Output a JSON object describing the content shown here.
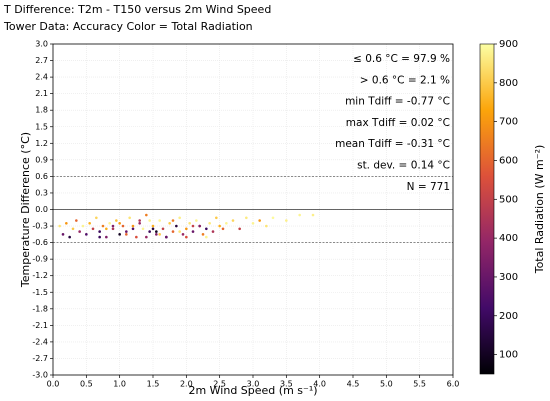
{
  "chart_data": {
    "type": "scatter",
    "title": "T Difference: T2m - T150 versus 2m Wind Speed",
    "subtitle": "Tower Data: Accuracy   Color = Total Radiation",
    "xlabel": "2m Wind Speed (m s⁻¹)",
    "ylabel": "Temperature Difference (°C)",
    "colorbar_label": "Total Radiation (W m⁻²)",
    "annotations": [
      "≤  0.6 °C = 97.9 %",
      "> 0.6 °C = 2.1 %",
      "min Tdiff = -0.77 °C",
      "max Tdiff = 0.02 °C",
      "mean Tdiff = -0.31 °C",
      "st. dev. = 0.14 °C",
      "N =  771"
    ],
    "xlim": [
      0,
      6
    ],
    "xticks": [
      {
        "value": 0,
        "label": "0.0"
      },
      0.5,
      {
        "value": 1,
        "label": "1.0"
      },
      1.5,
      {
        "value": 2,
        "label": "2.0"
      },
      2.5,
      {
        "value": 3,
        "label": "3.0"
      },
      3.5,
      {
        "value": 4,
        "label": "4.0"
      },
      4.5,
      {
        "value": 5,
        "label": "5.0"
      },
      5.5,
      {
        "value": 6,
        "label": "6.0"
      }
    ],
    "ylim": [
      -3,
      3
    ],
    "yticks": [
      {
        "value": 3,
        "label": "3.0"
      },
      2.7,
      2.4,
      2.1,
      1.8,
      1.5,
      1.2,
      0.9,
      0.6,
      0.3,
      {
        "value": 0,
        "label": "0.0"
      },
      -0.3,
      -0.6,
      -0.9,
      -1.2,
      -1.5,
      -1.8,
      -2.1,
      -2.4,
      -2.7,
      {
        "value": -3,
        "label": "-3.0"
      }
    ],
    "clim": [
      50,
      900
    ],
    "cticks": [
      100,
      200,
      300,
      400,
      500,
      600,
      700,
      800,
      900
    ],
    "colormap": [
      "#000004",
      "#420a68",
      "#932667",
      "#dd513a",
      "#fca50a",
      "#fcffa4"
    ],
    "grid": true,
    "hlines": [
      {
        "value": 0.6,
        "style": "dashed"
      },
      {
        "value": 0,
        "style": "solid"
      },
      {
        "value": -0.6,
        "style": "dashed"
      }
    ],
    "x": [
      0.1,
      0.15,
      0.2,
      0.25,
      0.3,
      0.35,
      0.4,
      0.45,
      0.5,
      0.55,
      0.6,
      0.65,
      0.7,
      0.75,
      0.8,
      0.85,
      0.9,
      0.95,
      1.0,
      1.05,
      1.1,
      1.15,
      1.2,
      1.25,
      1.3,
      1.35,
      1.4,
      1.45,
      1.5,
      1.55,
      1.6,
      1.65,
      1.7,
      1.75,
      1.8,
      1.85,
      1.9,
      1.95,
      2.0,
      2.05,
      2.1,
      2.15,
      2.2,
      2.25,
      2.3,
      2.35,
      2.4,
      2.45,
      2.5,
      2.55,
      2.6,
      2.7,
      2.8,
      2.9,
      3.0,
      3.1,
      3.2,
      3.3,
      3.5,
      3.7,
      0.7,
      0.9,
      1.1,
      1.3,
      1.5,
      1.7,
      1.9,
      2.1,
      2.3,
      3.9,
      1.0,
      1.2,
      1.4,
      1.6,
      1.8,
      2.0,
      2.2,
      1.45,
      1.55,
      0.8
    ],
    "values": [
      -0.3,
      -0.45,
      -0.25,
      -0.5,
      -0.35,
      -0.2,
      -0.4,
      -0.3,
      -0.45,
      -0.25,
      -0.35,
      -0.15,
      -0.4,
      -0.3,
      -0.5,
      -0.25,
      -0.35,
      -0.2,
      -0.45,
      -0.3,
      -0.4,
      -0.15,
      -0.3,
      -0.5,
      -0.25,
      -0.35,
      -0.1,
      -0.4,
      -0.3,
      -0.45,
      -0.2,
      -0.35,
      -0.5,
      -0.25,
      -0.4,
      -0.3,
      -0.15,
      -0.45,
      -0.35,
      -0.25,
      -0.4,
      -0.2,
      -0.3,
      -0.45,
      -0.35,
      -0.25,
      -0.4,
      -0.15,
      -0.3,
      -0.35,
      -0.25,
      -0.2,
      -0.35,
      -0.15,
      -0.25,
      -0.2,
      -0.3,
      -0.15,
      -0.2,
      -0.1,
      -0.5,
      -0.3,
      -0.45,
      -0.2,
      -0.35,
      -0.5,
      -0.4,
      -0.3,
      -0.5,
      -0.1,
      -0.25,
      -0.35,
      -0.5,
      -0.45,
      -0.2,
      -0.5,
      -0.3,
      -0.2,
      -0.4,
      -0.35
    ],
    "color_values": [
      850,
      300,
      700,
      150,
      800,
      600,
      400,
      880,
      250,
      750,
      500,
      820,
      200,
      650,
      350,
      880,
      450,
      780,
      100,
      600,
      300,
      850,
      700,
      550,
      400,
      880,
      650,
      200,
      750,
      350,
      880,
      500,
      250,
      800,
      600,
      150,
      870,
      400,
      700,
      850,
      300,
      880,
      550,
      650,
      200,
      860,
      450,
      800,
      750,
      600,
      880,
      820,
      500,
      860,
      880,
      700,
      850,
      890,
      870,
      880,
      200,
      350,
      600,
      450,
      150,
      300,
      850,
      500,
      880,
      870,
      700,
      250,
      400,
      800,
      650,
      550,
      350,
      880,
      100,
      750
    ]
  }
}
